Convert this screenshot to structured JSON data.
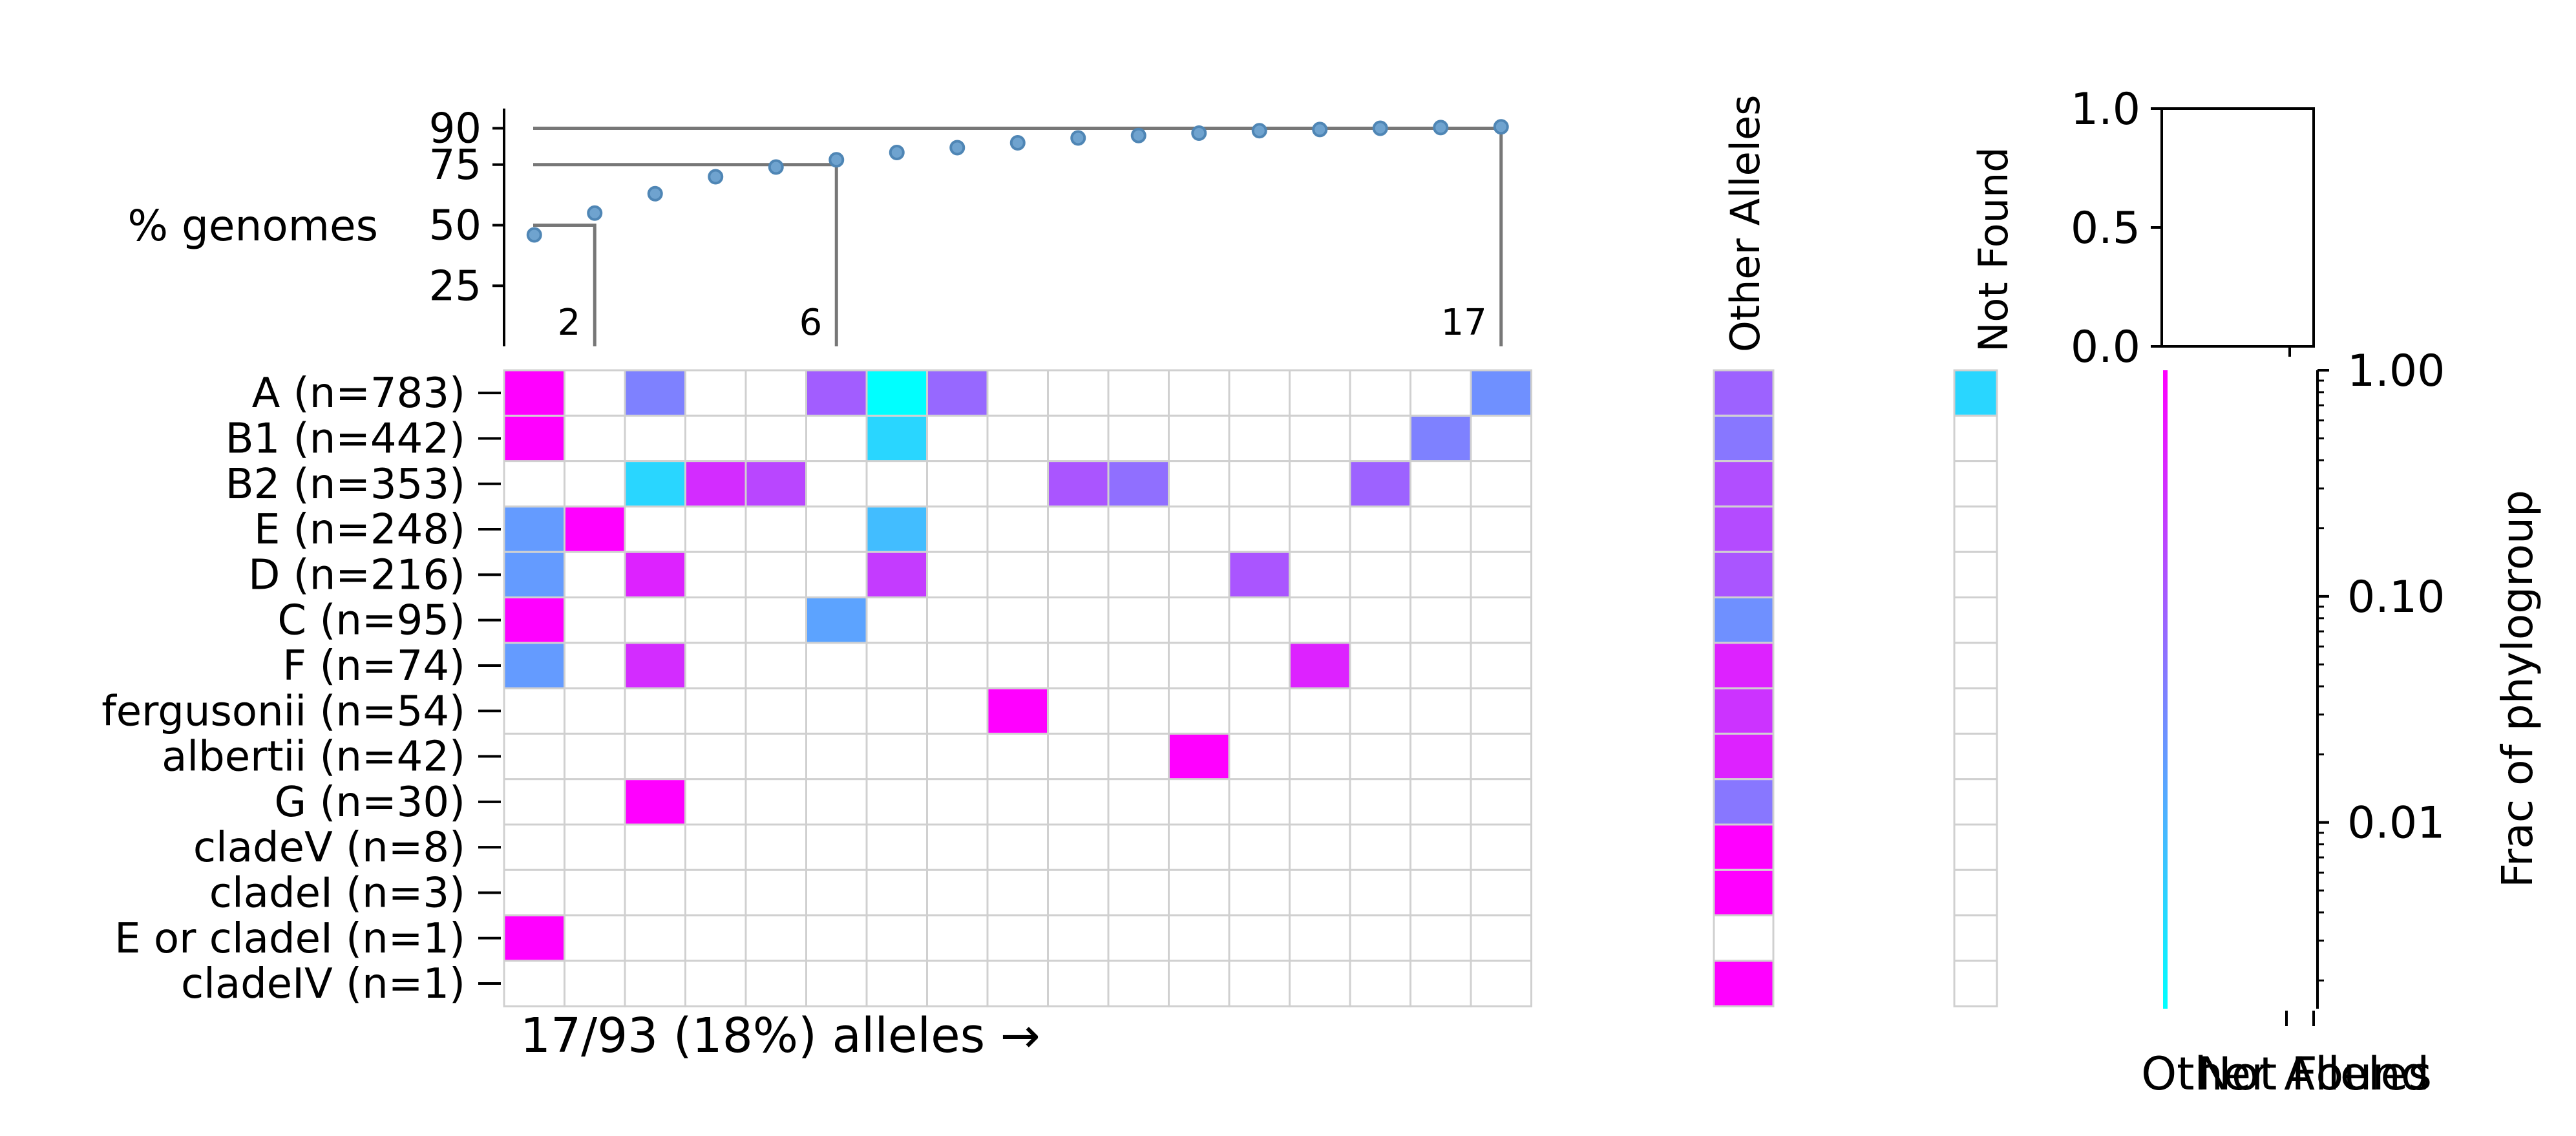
{
  "chart_data": [
    {
      "type": "scatter",
      "ylabel": "% genomes",
      "y_ticks": [
        25,
        50,
        75,
        90
      ],
      "ylim": [
        0,
        100
      ],
      "x": [
        1,
        2,
        3,
        4,
        5,
        6,
        7,
        8,
        9,
        10,
        11,
        12,
        13,
        14,
        15,
        16,
        17
      ],
      "values": [
        46,
        55,
        63,
        70,
        74,
        77,
        80,
        82,
        84,
        86,
        87,
        88,
        89,
        89.5,
        90,
        90.3,
        90.6
      ],
      "annotations": [
        {
          "label": "2",
          "x": 2,
          "y": 50
        },
        {
          "label": "6",
          "x": 6,
          "y": 75
        },
        {
          "label": "17",
          "x": 17,
          "y": 90
        }
      ]
    },
    {
      "type": "heatmap",
      "xlabel": "17/93 (18%) alleles →",
      "rows": [
        "A (n=783)",
        "B1 (n=442)",
        "B2 (n=353)",
        "E (n=248)",
        "D (n=216)",
        "C (n=95)",
        "F (n=74)",
        "fergusonii (n=54)",
        "albertii (n=42)",
        "G (n=30)",
        "cladeV (n=8)",
        "cladeI (n=3)",
        "E or cladeI (n=1)",
        "cladeIV (n=1)"
      ],
      "n_allele_columns": 17,
      "allele_cells": [
        {
          "row": 0,
          "col": 0,
          "frac": 1.0
        },
        {
          "row": 0,
          "col": 2,
          "frac": 0.03
        },
        {
          "row": 0,
          "col": 5,
          "frac": 0.08
        },
        {
          "row": 0,
          "col": 6,
          "frac": 0.001
        },
        {
          "row": 0,
          "col": 7,
          "frac": 0.06
        },
        {
          "row": 0,
          "col": 16,
          "frac": 0.02
        },
        {
          "row": 1,
          "col": 0,
          "frac": 1.0
        },
        {
          "row": 1,
          "col": 6,
          "frac": 0.003
        },
        {
          "row": 1,
          "col": 15,
          "frac": 0.03
        },
        {
          "row": 2,
          "col": 2,
          "frac": 0.003
        },
        {
          "row": 2,
          "col": 3,
          "frac": 0.3
        },
        {
          "row": 2,
          "col": 4,
          "frac": 0.15
        },
        {
          "row": 2,
          "col": 9,
          "frac": 0.1
        },
        {
          "row": 2,
          "col": 10,
          "frac": 0.05
        },
        {
          "row": 2,
          "col": 14,
          "frac": 0.07
        },
        {
          "row": 3,
          "col": 0,
          "frac": 0.015
        },
        {
          "row": 3,
          "col": 1,
          "frac": 1.0
        },
        {
          "row": 3,
          "col": 6,
          "frac": 0.006
        },
        {
          "row": 4,
          "col": 0,
          "frac": 0.015
        },
        {
          "row": 4,
          "col": 2,
          "frac": 0.4
        },
        {
          "row": 4,
          "col": 6,
          "frac": 0.2
        },
        {
          "row": 4,
          "col": 12,
          "frac": 0.1
        },
        {
          "row": 5,
          "col": 0,
          "frac": 1.0
        },
        {
          "row": 5,
          "col": 5,
          "frac": 0.012
        },
        {
          "row": 6,
          "col": 0,
          "frac": 0.015
        },
        {
          "row": 6,
          "col": 2,
          "frac": 0.3
        },
        {
          "row": 6,
          "col": 13,
          "frac": 0.4
        },
        {
          "row": 7,
          "col": 8,
          "frac": 1.0
        },
        {
          "row": 8,
          "col": 11,
          "frac": 1.0
        },
        {
          "row": 9,
          "col": 2,
          "frac": 1.0
        },
        {
          "row": 12,
          "col": 0,
          "frac": 1.0
        }
      ],
      "other_alleles_label": "Other Alleles",
      "other_alleles": [
        0.07,
        0.04,
        0.12,
        0.13,
        0.1,
        0.02,
        0.4,
        0.25,
        0.4,
        0.04,
        1.0,
        1.0,
        null,
        1.0
      ],
      "not_found_label": "Not Found",
      "not_found": [
        0.003,
        null,
        null,
        null,
        null,
        null,
        null,
        null,
        null,
        null,
        null,
        null,
        null,
        null
      ]
    },
    {
      "type": "bar",
      "y_ticks": [
        "0.0",
        "0.5",
        "1.0"
      ],
      "ylim": [
        0,
        1
      ]
    },
    {
      "type": "colorbar",
      "scale": "log",
      "label": "Frac of phylogroup",
      "ticks": [
        "1.00",
        "0.10",
        "0.01"
      ],
      "colormap": "cool",
      "colors": {
        "low": "#00ffff",
        "high": "#ff00ff"
      },
      "x_ticks": [
        "Other Alleles",
        "Not Found"
      ]
    }
  ]
}
